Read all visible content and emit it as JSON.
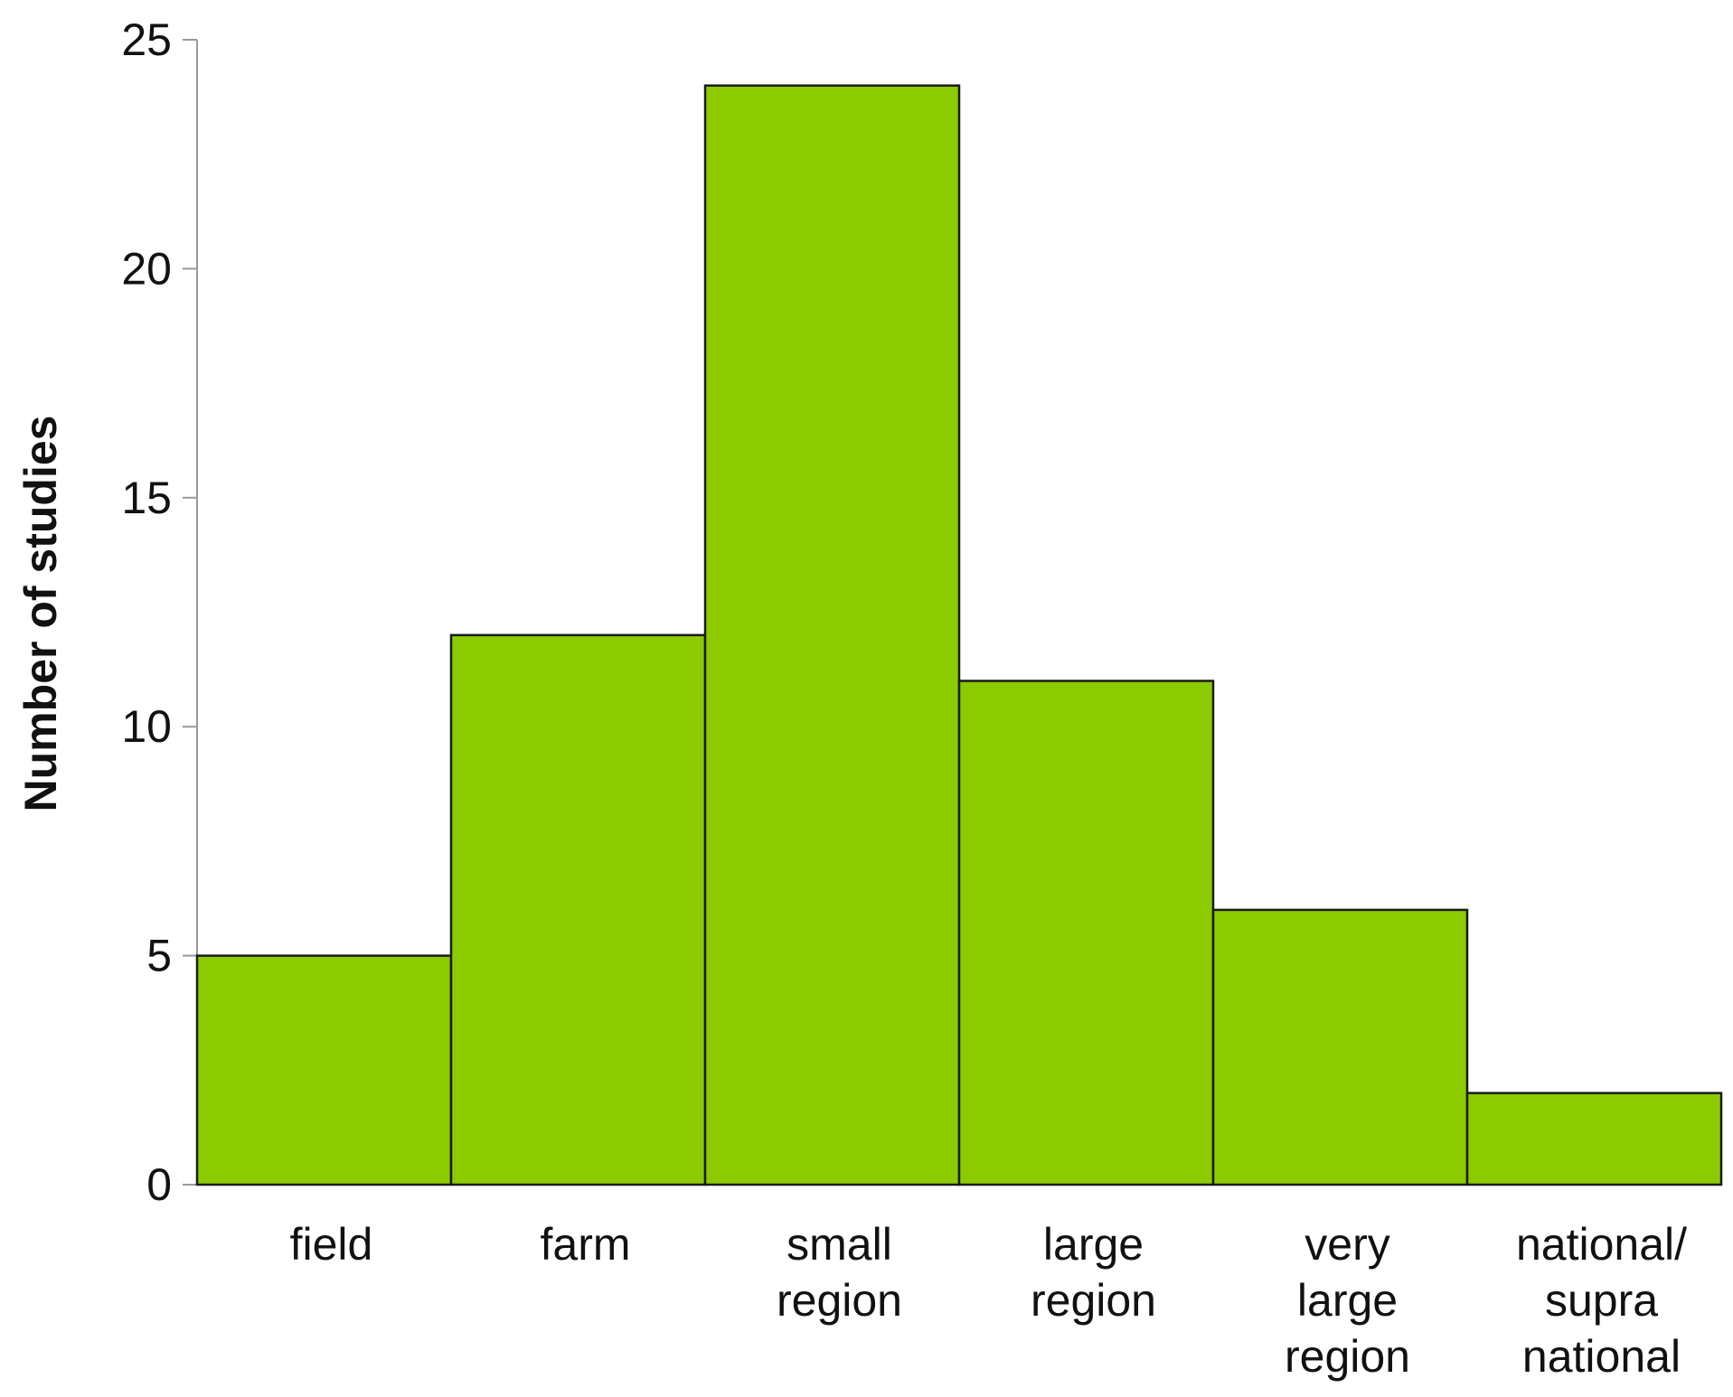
{
  "chart_data": {
    "type": "bar",
    "title": "",
    "xlabel": "",
    "ylabel": "Number of studies",
    "ylim": [
      0,
      25
    ],
    "yticks": [
      "0",
      "5",
      "10",
      "15",
      "20",
      "25"
    ],
    "categories": [
      [
        "field"
      ],
      [
        "farm"
      ],
      [
        "small",
        "region"
      ],
      [
        "large",
        "region"
      ],
      [
        "very",
        "large",
        "region"
      ],
      [
        "national/",
        "supra",
        "national"
      ]
    ],
    "values": [
      5,
      12,
      24,
      11,
      6,
      2
    ],
    "bar_color": "#8ccb00",
    "edge_color": "#1a1a1a",
    "grid": false
  }
}
